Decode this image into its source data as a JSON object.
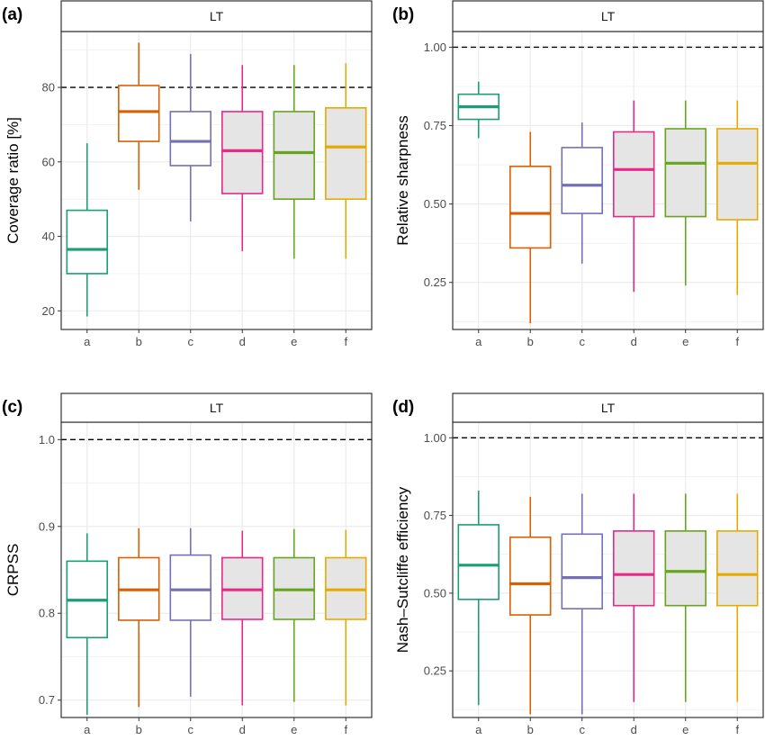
{
  "chart_data": [
    {
      "type": "boxplot",
      "panel_label": "(a)",
      "strip": "LT",
      "ylabel": "Coverage ratio [%]",
      "ylim": [
        15,
        95
      ],
      "yticks": [
        20,
        40,
        60,
        80
      ],
      "ytick_labels": [
        "20",
        "40",
        "60",
        "80"
      ],
      "reference_line": 80,
      "categories": [
        "a",
        "b",
        "c",
        "d",
        "e",
        "f"
      ],
      "boxes": [
        {
          "category": "a",
          "min": 18.5,
          "q1": 30,
          "median": 36.5,
          "q3": 47,
          "max": 65
        },
        {
          "category": "b",
          "min": 52.5,
          "q1": 65.5,
          "median": 73.5,
          "q3": 80.5,
          "max": 92
        },
        {
          "category": "c",
          "min": 44,
          "q1": 59,
          "median": 65.5,
          "q3": 73.5,
          "max": 89
        },
        {
          "category": "d",
          "min": 36,
          "q1": 51.5,
          "median": 63,
          "q3": 73.5,
          "max": 86
        },
        {
          "category": "e",
          "min": 34,
          "q1": 50,
          "median": 62.5,
          "q3": 73.5,
          "max": 86
        },
        {
          "category": "f",
          "min": 34,
          "q1": 50,
          "median": 64,
          "q3": 74.5,
          "max": 86.5
        }
      ]
    },
    {
      "type": "boxplot",
      "panel_label": "(b)",
      "strip": "LT",
      "ylabel": "Relative sharpness",
      "ylim": [
        0.1,
        1.05
      ],
      "yticks": [
        0.25,
        0.5,
        0.75,
        1.0
      ],
      "ytick_labels": [
        "0.25",
        "0.50",
        "0.75",
        "1.00"
      ],
      "reference_line": 1.0,
      "categories": [
        "a",
        "b",
        "c",
        "d",
        "e",
        "f"
      ],
      "boxes": [
        {
          "category": "a",
          "min": 0.71,
          "q1": 0.77,
          "median": 0.81,
          "q3": 0.85,
          "max": 0.89
        },
        {
          "category": "b",
          "min": 0.12,
          "q1": 0.36,
          "median": 0.47,
          "q3": 0.62,
          "max": 0.73
        },
        {
          "category": "c",
          "min": 0.31,
          "q1": 0.47,
          "median": 0.56,
          "q3": 0.68,
          "max": 0.76
        },
        {
          "category": "d",
          "min": 0.22,
          "q1": 0.46,
          "median": 0.61,
          "q3": 0.73,
          "max": 0.83
        },
        {
          "category": "e",
          "min": 0.24,
          "q1": 0.46,
          "median": 0.63,
          "q3": 0.74,
          "max": 0.83
        },
        {
          "category": "f",
          "min": 0.21,
          "q1": 0.45,
          "median": 0.63,
          "q3": 0.74,
          "max": 0.83
        }
      ]
    },
    {
      "type": "boxplot",
      "panel_label": "(c)",
      "strip": "LT",
      "ylabel": "CRPSS",
      "ylim": [
        0.68,
        1.02
      ],
      "yticks": [
        0.7,
        0.8,
        0.9,
        1.0
      ],
      "ytick_labels": [
        "0.7",
        "0.8",
        "0.9",
        "1.0"
      ],
      "reference_line": 1.0,
      "categories": [
        "a",
        "b",
        "c",
        "d",
        "e",
        "f"
      ],
      "boxes": [
        {
          "category": "a",
          "min": 0.683,
          "q1": 0.772,
          "median": 0.815,
          "q3": 0.86,
          "max": 0.892
        },
        {
          "category": "b",
          "min": 0.692,
          "q1": 0.792,
          "median": 0.827,
          "q3": 0.864,
          "max": 0.898
        },
        {
          "category": "c",
          "min": 0.704,
          "q1": 0.792,
          "median": 0.827,
          "q3": 0.867,
          "max": 0.898
        },
        {
          "category": "d",
          "min": 0.694,
          "q1": 0.793,
          "median": 0.827,
          "q3": 0.864,
          "max": 0.895
        },
        {
          "category": "e",
          "min": 0.698,
          "q1": 0.793,
          "median": 0.827,
          "q3": 0.864,
          "max": 0.897
        },
        {
          "category": "f",
          "min": 0.694,
          "q1": 0.793,
          "median": 0.827,
          "q3": 0.864,
          "max": 0.896
        }
      ]
    },
    {
      "type": "boxplot",
      "panel_label": "(d)",
      "strip": "LT",
      "ylabel": "Nash–Sutcliffe efficiency",
      "ylim": [
        0.1,
        1.05
      ],
      "yticks": [
        0.25,
        0.5,
        0.75,
        1.0
      ],
      "ytick_labels": [
        "0.25",
        "0.50",
        "0.75",
        "1.00"
      ],
      "reference_line": 1.0,
      "categories": [
        "a",
        "b",
        "c",
        "d",
        "e",
        "f"
      ],
      "boxes": [
        {
          "category": "a",
          "min": 0.14,
          "q1": 0.48,
          "median": 0.59,
          "q3": 0.72,
          "max": 0.83
        },
        {
          "category": "b",
          "min": 0.11,
          "q1": 0.43,
          "median": 0.53,
          "q3": 0.68,
          "max": 0.81
        },
        {
          "category": "c",
          "min": 0.11,
          "q1": 0.45,
          "median": 0.55,
          "q3": 0.69,
          "max": 0.82
        },
        {
          "category": "d",
          "min": 0.15,
          "q1": 0.46,
          "median": 0.56,
          "q3": 0.7,
          "max": 0.82
        },
        {
          "category": "e",
          "min": 0.15,
          "q1": 0.46,
          "median": 0.57,
          "q3": 0.7,
          "max": 0.82
        },
        {
          "category": "f",
          "min": 0.15,
          "q1": 0.46,
          "median": 0.56,
          "q3": 0.7,
          "max": 0.82
        }
      ]
    }
  ],
  "colors": {
    "a": "#1b9e77",
    "b": "#d95f02",
    "c": "#7570b3",
    "d": "#e7298a",
    "e": "#66a61e",
    "f": "#e6ab02",
    "shaded_fill": "#e5e5e5",
    "plain_fill": "#ffffff",
    "grid": "#ebebeb",
    "frame": "#333333"
  },
  "shaded_categories": [
    "d",
    "e",
    "f"
  ]
}
